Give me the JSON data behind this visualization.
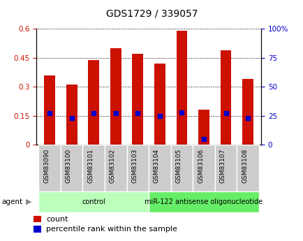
{
  "title": "GDS1729 / 339057",
  "samples": [
    "GSM83090",
    "GSM83100",
    "GSM83101",
    "GSM83102",
    "GSM83103",
    "GSM83104",
    "GSM83105",
    "GSM83106",
    "GSM83107",
    "GSM83108"
  ],
  "counts": [
    0.36,
    0.31,
    0.44,
    0.5,
    0.47,
    0.42,
    0.59,
    0.18,
    0.49,
    0.34
  ],
  "percentiles": [
    27,
    23,
    27,
    27,
    27,
    25,
    28,
    5,
    27,
    23
  ],
  "bar_color": "#CC1100",
  "dot_color": "#0000CC",
  "ylim_left": [
    0,
    0.6
  ],
  "ylim_right": [
    0,
    100
  ],
  "yticks_left": [
    0,
    0.15,
    0.3,
    0.45,
    0.6
  ],
  "yticks_right": [
    0,
    25,
    50,
    75,
    100
  ],
  "ytick_labels_left": [
    "0",
    "0.15",
    "0.3",
    "0.45",
    "0.6"
  ],
  "ytick_labels_right": [
    "0",
    "25",
    "50",
    "75",
    "100%"
  ],
  "groups": [
    {
      "label": "control",
      "start": 0,
      "end": 5,
      "color": "#BBFFBB"
    },
    {
      "label": "miR-122 antisense oligonucleotide",
      "start": 5,
      "end": 10,
      "color": "#66EE66"
    }
  ],
  "agent_label": "agent",
  "legend_count_label": "count",
  "legend_percentile_label": "percentile rank within the sample",
  "bar_width": 0.5,
  "tick_label_color_left": "#CC1100",
  "tick_label_color_right": "#0000CC"
}
